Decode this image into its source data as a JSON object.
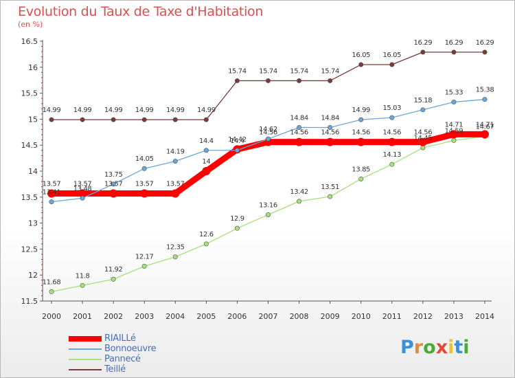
{
  "header": {
    "title": "Evolution du Taux de Taxe d'Habitation",
    "subtitle": "(en %)"
  },
  "logo": {
    "letters": [
      "P",
      "r",
      "o",
      "x",
      "i",
      "t",
      "i"
    ],
    "colors": [
      "#3d8fd6",
      "#e8883a",
      "#4aaa3c",
      "#e04a3c",
      "#e8c23a",
      "#3d8fd6",
      "#4aaa3c"
    ]
  },
  "chart_data": {
    "type": "line",
    "title": "Evolution du Taux de Taxe d'Habitation",
    "ylabel": "(en %)",
    "xlabel": "",
    "x": [
      2000,
      2001,
      2002,
      2003,
      2004,
      2005,
      2006,
      2007,
      2008,
      2009,
      2010,
      2011,
      2012,
      2013,
      2014
    ],
    "ylim": [
      11.5,
      16.5
    ],
    "yticks": [
      11.5,
      12,
      12.5,
      13,
      13.5,
      14,
      14.5,
      15,
      15.5,
      16,
      16.5
    ],
    "grid": false,
    "legend_position": "bottom-left",
    "series": [
      {
        "name": "RIAILLé",
        "color": "#ff0000",
        "width": "thick",
        "values": [
          13.57,
          13.57,
          13.57,
          13.57,
          13.57,
          14,
          14.42,
          14.56,
          14.56,
          14.56,
          14.56,
          14.56,
          14.56,
          14.71,
          14.71
        ],
        "labels": [
          "13.57",
          "13.57",
          "13.57",
          "13.57",
          "13.57",
          "14",
          "14.42",
          "14.56",
          "14.56",
          "14.56",
          "14.56",
          "14.56",
          "14.56",
          "14.71",
          "14.71"
        ]
      },
      {
        "name": "Bonnoeuvre",
        "color": "#6aa7d8",
        "width": "thin",
        "values": [
          13.41,
          13.48,
          13.75,
          14.05,
          14.19,
          14.4,
          14.4,
          14.62,
          14.84,
          14.84,
          14.99,
          15.03,
          15.18,
          15.33,
          15.38
        ],
        "labels": [
          "13.41",
          "13.48",
          "13.75",
          "14.05",
          "14.19",
          "14.4",
          "14.4",
          "14.62",
          "14.84",
          "14.84",
          "14.99",
          "15.03",
          "15.18",
          "15.33",
          "15.38"
        ]
      },
      {
        "name": "Pannecé",
        "color": "#a6e07a",
        "width": "thin",
        "values": [
          11.68,
          11.8,
          11.92,
          12.17,
          12.35,
          12.6,
          12.9,
          13.16,
          13.42,
          13.51,
          13.85,
          14.13,
          14.45,
          14.59,
          14.67
        ],
        "labels": [
          "11.68",
          "11.8",
          "11.92",
          "12.17",
          "12.35",
          "12.6",
          "12.9",
          "13.16",
          "13.42",
          "13.51",
          "13.85",
          "14.13",
          "14.45",
          "14.59",
          "14.67"
        ]
      },
      {
        "name": "Teillé",
        "color": "#7a3a3a",
        "width": "thin",
        "values": [
          14.99,
          14.99,
          14.99,
          14.99,
          14.99,
          14.99,
          15.74,
          15.74,
          15.74,
          15.74,
          16.05,
          16.05,
          16.29,
          16.29,
          16.29
        ],
        "labels": [
          "14.99",
          "14.99",
          "14.99",
          "14.99",
          "14.99",
          "14.99",
          "15.74",
          "15.74",
          "15.74",
          "15.74",
          "16.05",
          "16.05",
          "16.29",
          "16.29",
          "16.29"
        ]
      }
    ]
  }
}
